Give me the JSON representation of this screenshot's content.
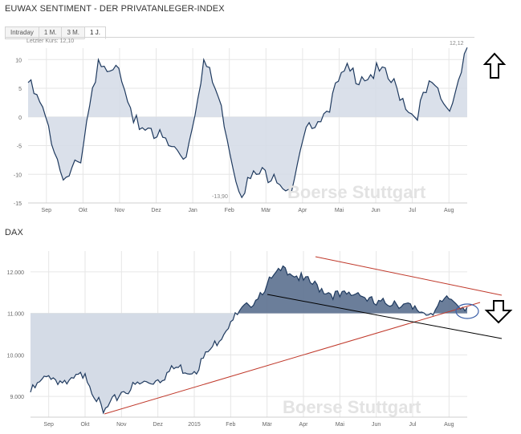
{
  "chart1": {
    "title": "EUWAX SENTIMENT - DER PRIVATANLEGER-INDEX",
    "tabs": [
      "Intraday",
      "1 M.",
      "3 M.",
      "1 J."
    ],
    "active_tab": 3,
    "last_label": "Letzter Kurs: 12,10",
    "end_marker": "12,12",
    "min_marker": "-13,90",
    "watermark": "Boerse Stuttgart"
  },
  "chart2": {
    "title": "DAX",
    "watermark": "Boerse Stuttgart"
  },
  "colors": {
    "line": "#1f3a5f",
    "fill_light": "#d4dbe6",
    "fill_dark": "#5b708f",
    "grid": "#e6e6e6",
    "trend_red": "#c0392b",
    "trend_black": "#000000",
    "circle": "#3b5fa8"
  },
  "chart_data": [
    {
      "type": "line",
      "title": "EUWAX SENTIMENT - DER PRIVATANLEGER-INDEX",
      "x_tick_labels": [
        "Sep",
        "Okt",
        "Nov",
        "Dez",
        "Jan",
        "Feb",
        "Mär",
        "Apr",
        "Mai",
        "Jun",
        "Jul",
        "Aug"
      ],
      "y_ticks": [
        10,
        5,
        0,
        -5,
        -10,
        -15
      ],
      "ylim": [
        -15,
        12
      ],
      "baseline": 0,
      "grid": true,
      "series": [
        {
          "x": [
            0,
            0.5,
            1,
            1.5,
            2,
            2.5,
            3,
            3.5,
            4,
            4.5,
            5,
            5.5,
            6,
            6.5,
            7,
            7.5,
            8,
            8.5,
            9,
            9.5,
            10,
            10.5,
            11,
            11.5,
            12,
            12.5
          ],
          "values": [
            6,
            0,
            -11,
            -8,
            10,
            9,
            -1,
            -2,
            -5,
            -7,
            10,
            2,
            -13,
            -10,
            -10,
            -13,
            -1,
            1,
            8,
            7,
            8,
            5,
            0,
            6,
            1,
            12.1
          ]
        }
      ]
    },
    {
      "type": "area",
      "title": "DAX",
      "x_tick_labels": [
        "Sep",
        "Okt",
        "Nov",
        "Dez",
        "2015",
        "Feb",
        "Mär",
        "Apr",
        "Mai",
        "Jun",
        "Jul",
        "Aug"
      ],
      "y_ticks": [
        12000,
        11000,
        10000,
        9000
      ],
      "ylim": [
        8500,
        12500
      ],
      "baseline": 11000,
      "grid": true,
      "series": [
        {
          "x": [
            0,
            0.5,
            1,
            1.5,
            2,
            2.5,
            3,
            3.5,
            4,
            4.5,
            5,
            5.5,
            6,
            6.5,
            7,
            7.5,
            8,
            8.5,
            9,
            9.5,
            10,
            10.5,
            11,
            11.5,
            12
          ],
          "values": [
            9100,
            9500,
            9300,
            9550,
            8600,
            9100,
            9300,
            9400,
            9700,
            9600,
            10200,
            10800,
            11200,
            11700,
            12100,
            11800,
            11600,
            11400,
            11500,
            11200,
            11300,
            11100,
            11000,
            11350,
            11150
          ]
        }
      ]
    }
  ]
}
